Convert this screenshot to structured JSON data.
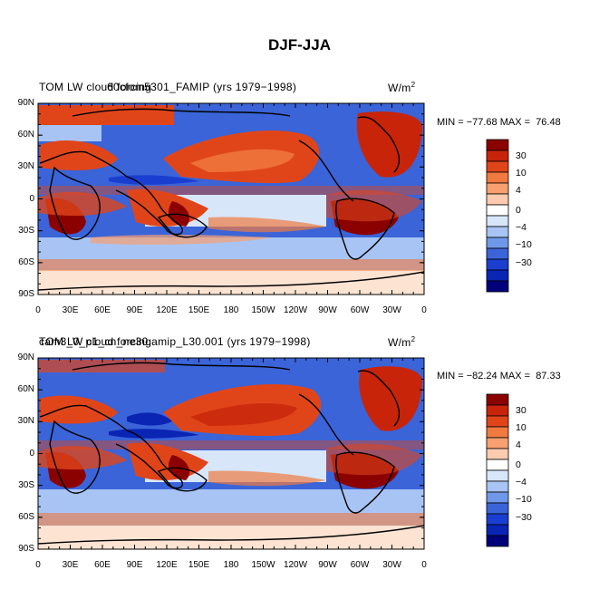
{
  "page_title": "DJF-JJA",
  "panels": [
    {
      "title_left": "TOM LW cloud forcing",
      "title_overlap": "60cfom5301_FAMIP (yrs 1979−1998)",
      "units": "W/m",
      "units_sup": "2",
      "min_label": "MIN =",
      "min_value": "−77.68",
      "max_label": "MAX =",
      "max_value": "76.48"
    },
    {
      "title_left": "TOM LW cloud forcing",
      "title_overlap": "cam3_0_p1_cn_ne30.amip_L30.001 (yrs 1979−1998)",
      "units": "W/m",
      "units_sup": "2",
      "min_label": "MIN =",
      "min_value": "−82.24",
      "max_label": "MAX =",
      "max_value": "87.33"
    }
  ],
  "lat_labels": [
    "90N",
    "60N",
    "30N",
    "0",
    "30S",
    "60S",
    "90S"
  ],
  "lon_labels": [
    "0",
    "30E",
    "60E",
    "90E",
    "120E",
    "150E",
    "180",
    "150W",
    "120W",
    "90W",
    "60W",
    "30W",
    "0"
  ],
  "colorbar_labels": [
    "30",
    "10",
    "4",
    "0",
    "−4",
    "−10",
    "−30"
  ],
  "colorbar_colors": [
    "#8b0000",
    "#c8240a",
    "#e0451a",
    "#f07a40",
    "#f8a070",
    "#fccbb0",
    "#ffffff",
    "#d8e6fa",
    "#a8c4f4",
    "#6f98ea",
    "#3a64d8",
    "#1a3ed0",
    "#0a24b4",
    "#00007a"
  ]
}
